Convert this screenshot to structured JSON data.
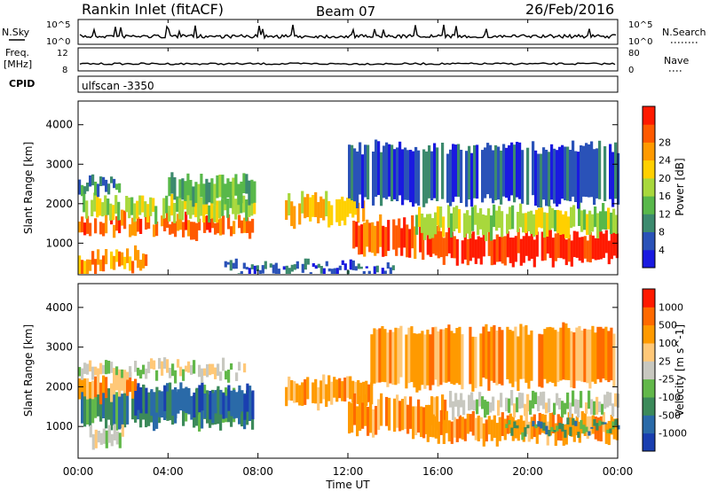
{
  "header": {
    "station": "Rankin Inlet (fitACF)",
    "beam": "Beam 07",
    "date": "26/Feb/2016",
    "cpid": "CPID",
    "program": "ulfscan -3350"
  },
  "top_panels": {
    "nsky_label": "N.Sky",
    "nsearch_label": "N.Search",
    "freq_label_1": "Freq.",
    "freq_label_2": "[MHz]",
    "nave_label": "Nave",
    "noise_ticks": [
      "10^5",
      "10^0"
    ],
    "freq_ticks": [
      "12",
      "8"
    ],
    "nave_ticks": [
      "80",
      "0"
    ]
  },
  "time_axis": {
    "label": "Time UT",
    "ticks": [
      "00:00",
      "04:00",
      "08:00",
      "12:00",
      "16:00",
      "20:00",
      "00:00"
    ]
  },
  "chart_data": [
    {
      "type": "heatmap",
      "panel": "power",
      "ylabel": "Slant Range [km]",
      "x_range_hours": [
        0,
        24
      ],
      "ylim": [
        200,
        4600
      ],
      "yticks": [
        1000,
        2000,
        3000,
        4000
      ],
      "colorbar_label": "Power [dB]",
      "colorbar_ticks": [
        4,
        8,
        12,
        16,
        20,
        24,
        28
      ],
      "colors": [
        "#1a1ae0",
        "#2a52b8",
        "#3c8a6e",
        "#58b84a",
        "#a8d83c",
        "#ffd000",
        "#ff9a00",
        "#ff5a00",
        "#ff1a00"
      ],
      "bands": [
        {
          "t0": 0.0,
          "t1": 7.8,
          "r0": 1200,
          "r1": 1700,
          "level": 7
        },
        {
          "t0": 0.2,
          "t1": 7.8,
          "r0": 1600,
          "r1": 2200,
          "level": 4
        },
        {
          "t0": 0.0,
          "t1": 1.8,
          "r0": 2300,
          "r1": 2700,
          "level": 2
        },
        {
          "t0": 4.0,
          "t1": 7.8,
          "r0": 2000,
          "r1": 2700,
          "level": 3
        },
        {
          "t0": 9.2,
          "t1": 12.8,
          "r0": 1500,
          "r1": 2200,
          "level": 5
        },
        {
          "t0": 12.2,
          "t1": 16.0,
          "r0": 700,
          "r1": 1600,
          "level": 7
        },
        {
          "t0": 15.5,
          "t1": 24.0,
          "r0": 500,
          "r1": 1300,
          "level": 8
        },
        {
          "t0": 15.0,
          "t1": 24.0,
          "r0": 1200,
          "r1": 1900,
          "level": 4
        },
        {
          "t0": 12.0,
          "t1": 24.0,
          "r0": 2000,
          "r1": 3500,
          "level": 1
        },
        {
          "t0": 0.0,
          "t1": 3.0,
          "r0": 300,
          "r1": 800,
          "level": 6
        },
        {
          "t0": 6.5,
          "t1": 14.0,
          "r0": 200,
          "r1": 500,
          "level": 1
        }
      ]
    },
    {
      "type": "heatmap",
      "panel": "velocity",
      "ylabel": "Slant Range [km]",
      "x_range_hours": [
        0,
        24
      ],
      "ylim": [
        200,
        4600
      ],
      "yticks": [
        1000,
        2000,
        3000,
        4000
      ],
      "colorbar_label": "Velocity [m s^-1]",
      "colorbar_ticks": [
        1000,
        500,
        100,
        25,
        -25,
        -100,
        -500,
        -1000
      ],
      "colors": [
        "#1a3fb0",
        "#2a6aa8",
        "#3c8a5a",
        "#62b84a",
        "#c8c8c0",
        "#ffc878",
        "#ff9a00",
        "#ff6a00",
        "#ff1a00"
      ],
      "bands": [
        {
          "t0": 0.0,
          "t1": 7.8,
          "r0": 1000,
          "r1": 2000,
          "level": 2
        },
        {
          "t0": 0.0,
          "t1": 2.5,
          "r0": 1700,
          "r1": 2300,
          "level": 6
        },
        {
          "t0": 2.5,
          "t1": 7.8,
          "r0": 1200,
          "r1": 2000,
          "level": 1
        },
        {
          "t0": 0.0,
          "t1": 7.5,
          "r0": 2200,
          "r1": 2600,
          "level": 4
        },
        {
          "t0": 0.5,
          "t1": 2.0,
          "r0": 500,
          "r1": 1000,
          "level": 4
        },
        {
          "t0": 9.2,
          "t1": 13.0,
          "r0": 1500,
          "r1": 2200,
          "level": 6
        },
        {
          "t0": 12.0,
          "t1": 16.5,
          "r0": 800,
          "r1": 1700,
          "level": 6
        },
        {
          "t0": 15.5,
          "t1": 24.0,
          "r0": 600,
          "r1": 1300,
          "level": 6
        },
        {
          "t0": 16.5,
          "t1": 24.0,
          "r0": 1300,
          "r1": 1800,
          "level": 4
        },
        {
          "t0": 19.0,
          "t1": 24.0,
          "r0": 800,
          "r1": 1100,
          "level": 2
        },
        {
          "t0": 13.0,
          "t1": 24.0,
          "r0": 2000,
          "r1": 3500,
          "level": 6
        }
      ]
    }
  ]
}
